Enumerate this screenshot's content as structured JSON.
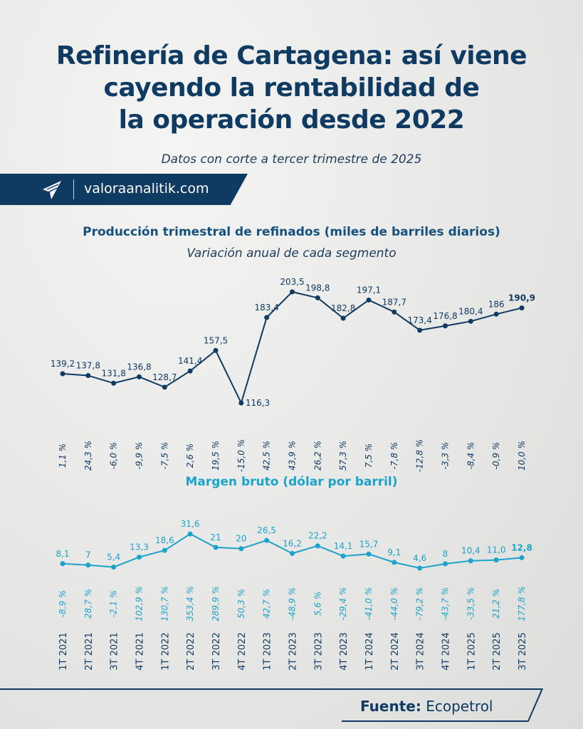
{
  "title_lines": [
    "Refinería de Cartagena: así viene",
    "cayendo la rentabilidad de",
    "la operación desde 2022"
  ],
  "subtitle": "Datos con corte a tercer trimestre de 2025",
  "banner": {
    "site": "valoraanalitik.com"
  },
  "footer": {
    "label": "Fuente:",
    "source": "Ecopetrol"
  },
  "colors": {
    "navy": "#0f3a62",
    "teal": "#1ba3c9"
  },
  "chart_data": [
    {
      "type": "line",
      "title": "Producción trimestral de refinados (miles de barriles diarios)",
      "subtitle": "Variación anual de cada segmento",
      "categories": [
        "1T 2021",
        "2T 2021",
        "3T 2021",
        "4T 2021",
        "1T 2022",
        "2T 2022",
        "3T 2022",
        "4T 2022",
        "1T 2023",
        "2T 2023",
        "3T 2023",
        "4T 2023",
        "1T 2024",
        "2T 2024",
        "3T 2024",
        "4T 2024",
        "1T 2025",
        "2T 2025",
        "3T 2025"
      ],
      "values": [
        139.2,
        137.8,
        131.8,
        136.8,
        128.7,
        141.4,
        157.5,
        116.3,
        183.4,
        203.5,
        198.8,
        182.8,
        197.1,
        187.7,
        173.4,
        176.8,
        180.4,
        186,
        190.9
      ],
      "value_labels": [
        "139,2",
        "137,8",
        "131,8",
        "136,8",
        "128,7",
        "141,4",
        "157,5",
        "116,3",
        "183,4",
        "203,5",
        "198,8",
        "182,8",
        "197,1",
        "187,7",
        "173,4",
        "176,8",
        "180,4",
        "186",
        "190,9"
      ],
      "annual_change": [
        "1,1 %",
        "24,3 %",
        "-6,0 %",
        "-9,9 %",
        "-7,5 %",
        "2,6 %",
        "19,5 %",
        "-15,0 %",
        "42,5 %",
        "43,9 %",
        "26,2 %",
        "57,3 %",
        "7,5 %",
        "-7,8 %",
        "-12,8 %",
        "-3,3 %",
        "-8,4 %",
        "-0,9 %",
        "10,0 %"
      ],
      "color": "#0f3a62"
    },
    {
      "type": "line",
      "title": "Margen bruto (dólar por barril)",
      "categories": [
        "1T 2021",
        "2T 2021",
        "3T 2021",
        "4T 2021",
        "1T 2022",
        "2T 2022",
        "3T 2022",
        "4T 2022",
        "1T 2023",
        "2T 2023",
        "3T 2023",
        "4T 2023",
        "1T 2024",
        "2T 2024",
        "3T 2024",
        "4T 2024",
        "1T 2025",
        "2T 2025",
        "3T 2025"
      ],
      "values": [
        8.1,
        7,
        5.4,
        13.3,
        18.6,
        31.6,
        21,
        20,
        26.5,
        16.2,
        22.2,
        14.1,
        15.7,
        9.1,
        4.6,
        8,
        10.4,
        11.0,
        12.8
      ],
      "value_labels": [
        "8,1",
        "7",
        "5,4",
        "13,3",
        "18,6",
        "31,6",
        "21",
        "20",
        "26,5",
        "16,2",
        "22,2",
        "14,1",
        "15,7",
        "9,1",
        "4,6",
        "8",
        "10,4",
        "11,0",
        "12,8"
      ],
      "annual_change": [
        "-8,9 %",
        "28,7 %",
        "-2,1 %",
        "102,9 %",
        "130,7 %",
        "353,4 %",
        "289,9 %",
        "50,3 %",
        "42,7 %",
        "-48,9 %",
        "5,6 %",
        "-29,4 %",
        "-41,0 %",
        "-44,0 %",
        "-79,2 %",
        "-43,7 %",
        "-33,5 %",
        "21,2 %",
        "177,8 %"
      ],
      "color": "#1ba3c9"
    }
  ]
}
